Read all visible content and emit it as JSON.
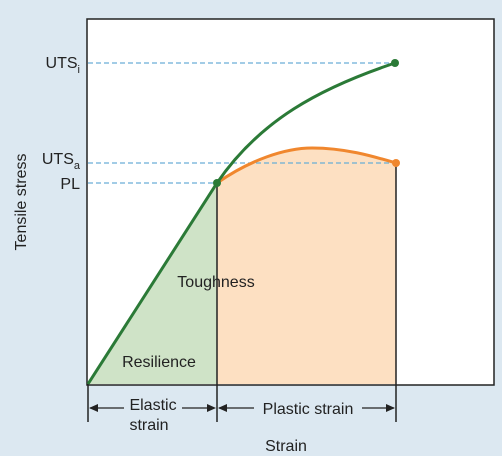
{
  "y_axis_title": "Tensile stress",
  "x_axis_title": "Strain",
  "y_labels": {
    "uts_i_main": "UTS",
    "uts_i_sub": "i",
    "uts_a_main": "UTS",
    "uts_a_sub": "a",
    "pl": "PL"
  },
  "regions": {
    "toughness": "Toughness",
    "resilience": "Resilience"
  },
  "strain_labels": {
    "elastic_line1": "Elastic",
    "elastic_line2": "strain",
    "plastic": "Plastic strain"
  },
  "colors": {
    "background": "#dce8f1",
    "plot_area": "#ffffff",
    "resilience_fill": "#cfe3c7",
    "toughness_fill": "#fde0c2",
    "ideal_curve": "#2b7a37",
    "actual_curve": "#f0872e",
    "guide_line": "#6aaed6",
    "axis": "#222222"
  }
}
